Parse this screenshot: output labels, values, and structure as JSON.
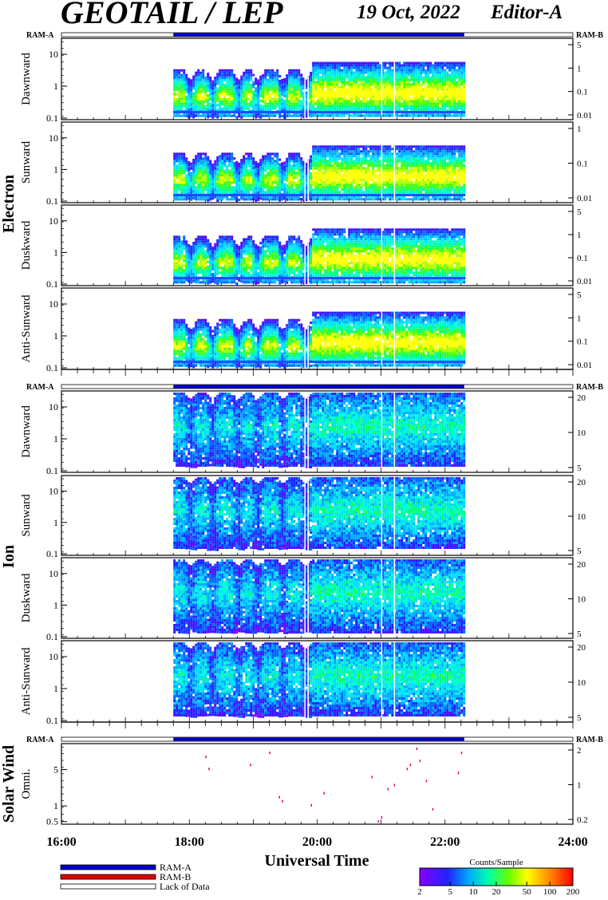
{
  "header": {
    "title": "GEOTAIL / LEP",
    "date": "19 Oct, 2022",
    "editor": "Editor-A"
  },
  "ram": {
    "left_label": "RAM-A",
    "right_label": "RAM-B"
  },
  "groups": {
    "electron": "Electron",
    "ion": "Ion",
    "solar_wind": "Solar Wind"
  },
  "colors": {
    "ram_a": "#0000cc",
    "ram_b": "#dd0000",
    "lack": "#ffffff"
  },
  "legend": {
    "ram_a": "RAM-A",
    "ram_b": "RAM-B",
    "lack": "Lack of Data"
  },
  "colorbar": {
    "title": "Counts/Sample",
    "ticks": [
      "2",
      "5",
      "10",
      "20",
      "50",
      "100",
      "200"
    ],
    "tick_values": [
      2,
      5,
      10,
      20,
      50,
      100,
      200
    ]
  },
  "chart_data": {
    "type": "heatmap",
    "xlabel": "Universal Time",
    "xticks": [
      "16:00",
      "18:00",
      "20:00",
      "22:00",
      "24:00"
    ],
    "xlim": [
      16,
      24
    ],
    "data_coverage_hours": [
      17.75,
      22.3
    ],
    "ram_a_coverage_hours": [
      17.75,
      22.3
    ],
    "panels": [
      {
        "group": "electron",
        "ylabel": "Dawnward",
        "yticks": [
          "0.1",
          "1",
          "10"
        ],
        "ytick_values": [
          0.1,
          1,
          10
        ],
        "right_ticks": [
          "5",
          "1",
          "0.1",
          "0.01"
        ]
      },
      {
        "group": "electron",
        "ylabel": "Sunward",
        "yticks": [
          "0.1",
          "1",
          "10"
        ],
        "ytick_values": [
          0.1,
          1,
          10
        ],
        "right_ticks": [
          "1",
          "0.1",
          "0.01"
        ]
      },
      {
        "group": "electron",
        "ylabel": "Duskward",
        "yticks": [
          "0.1",
          "1",
          "10"
        ],
        "ytick_values": [
          0.1,
          1,
          10
        ],
        "right_ticks": [
          "5",
          "1",
          "0.1",
          "0.01"
        ]
      },
      {
        "group": "electron",
        "ylabel": "Anti-Sunward",
        "yticks": [
          "0.1",
          "1",
          "10"
        ],
        "ytick_values": [
          0.1,
          1,
          10
        ],
        "right_ticks": [
          "5",
          "1",
          "0.1",
          "0.01"
        ]
      },
      {
        "group": "ion",
        "ylabel": "Dawnward",
        "yticks": [
          "0.1",
          "1",
          "10"
        ],
        "ytick_values": [
          0.1,
          1,
          10
        ],
        "right_ticks": [
          "20",
          "10",
          "5"
        ]
      },
      {
        "group": "ion",
        "ylabel": "Sunward",
        "yticks": [
          "0.1",
          "1",
          "10"
        ],
        "ytick_values": [
          0.1,
          1,
          10
        ],
        "right_ticks": [
          "20",
          "10",
          "5"
        ]
      },
      {
        "group": "ion",
        "ylabel": "Duskward",
        "yticks": [
          "0.1",
          "1",
          "10"
        ],
        "ytick_values": [
          0.1,
          1,
          10
        ],
        "right_ticks": [
          "20",
          "10",
          "5"
        ]
      },
      {
        "group": "ion",
        "ylabel": "Anti-Sunward",
        "yticks": [
          "0.1",
          "1",
          "10"
        ],
        "ytick_values": [
          0.1,
          1,
          10
        ],
        "right_ticks": [
          "20",
          "10",
          "5"
        ]
      },
      {
        "group": "solar_wind",
        "ylabel": "Omni.",
        "yticks": [
          "0.5",
          "1",
          "5"
        ],
        "ytick_values": [
          0.5,
          1,
          5
        ],
        "right_ticks": [
          "2",
          "1",
          "0.2"
        ]
      }
    ]
  }
}
